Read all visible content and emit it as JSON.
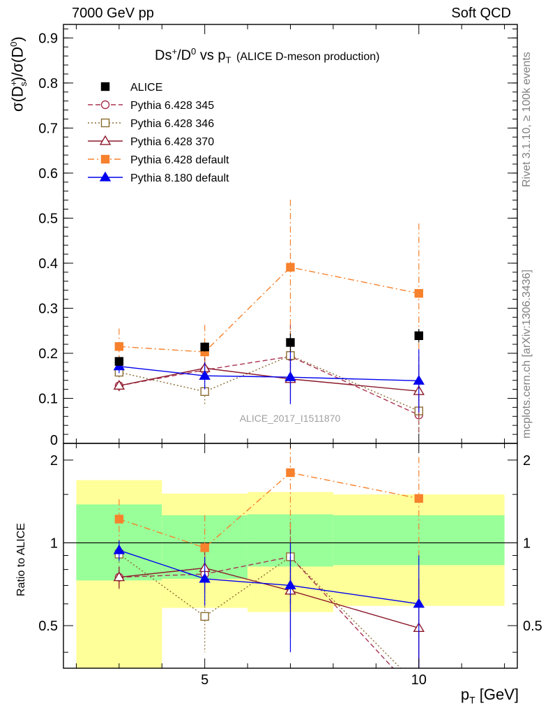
{
  "header": {
    "left": "7000 GeV pp",
    "right": "Soft QCD"
  },
  "side_labels": {
    "rivet": "Rivet 3.1.10, ≥ 100k events",
    "mcplots": "mcplots.cern.ch [arXiv:1306.3436]"
  },
  "chart_data": [
    {
      "type": "line",
      "title_main": "Ds",
      "title_sup1": "+",
      "title_mid": "/D",
      "title_sup2": "0",
      "title_vs": " vs p",
      "title_sub": "T",
      "title_tail": "(ALICE D-meson production)",
      "ylabel": "σ(D_s^+)/σ(D^0)",
      "ylabel_parts": {
        "a": "σ(D",
        "sup": "+",
        "sub": "s",
        "b": ")/σ(D",
        "sup2": "0",
        "c": ")"
      },
      "watermark": "ALICE_2017_I1511870",
      "xlim": [
        1.7,
        12.3
      ],
      "ylim": [
        0,
        0.93
      ],
      "y_ticks": [
        0,
        0.1,
        0.2,
        0.3,
        0.4,
        0.5,
        0.6,
        0.7,
        0.8,
        0.9
      ],
      "y_tick_labels": [
        "0",
        "0.1",
        "0.2",
        "0.3",
        "0.4",
        "0.5",
        "0.6",
        "0.7",
        "0.8",
        "0.9"
      ],
      "legend_position": "top-left",
      "series": [
        {
          "name": "ALICE",
          "color": "#000000",
          "marker": "filled-square",
          "line": "none",
          "x": [
            3,
            5,
            7,
            10
          ],
          "y": [
            0.182,
            0.214,
            0.224,
            0.239
          ],
          "yerr": [
            0.01,
            0.01,
            0.02,
            0.015
          ]
        },
        {
          "name": "Pythia 6.428 345",
          "color": "#a83250",
          "marker": "open-circle",
          "line": "dashed",
          "x": [
            3,
            5,
            7,
            10
          ],
          "y": [
            0.128,
            0.163,
            0.193,
            0.063
          ],
          "yerr": [
            0.012,
            0.025,
            0.07,
            0.04
          ]
        },
        {
          "name": "Pythia 6.428 346",
          "color": "#8b6b30",
          "marker": "open-square",
          "line": "dotted",
          "x": [
            3,
            5,
            7,
            10
          ],
          "y": [
            0.158,
            0.115,
            0.195,
            0.072
          ],
          "yerr": [
            0.015,
            0.03,
            0.07,
            0.05
          ]
        },
        {
          "name": "Pythia 6.428 370",
          "color": "#8b1a2b",
          "marker": "open-triangle",
          "line": "solid",
          "x": [
            3,
            5,
            7,
            10
          ],
          "y": [
            0.128,
            0.167,
            0.143,
            0.116
          ],
          "yerr": [
            0.012,
            0.025,
            0.05,
            0.06
          ]
        },
        {
          "name": "Pythia 6.428 default",
          "color": "#f7812c",
          "marker": "filled-square",
          "line": "dashdot",
          "x": [
            3,
            5,
            7,
            10
          ],
          "y": [
            0.215,
            0.203,
            0.391,
            0.333
          ],
          "yerr": [
            0.04,
            0.06,
            0.15,
            0.155
          ]
        },
        {
          "name": "Pythia 8.180 default",
          "color": "#0000ee",
          "marker": "filled-triangle",
          "line": "solid",
          "x": [
            3,
            5,
            7,
            10
          ],
          "y": [
            0.171,
            0.15,
            0.147,
            0.139
          ],
          "yerr": [
            0.015,
            0.03,
            0.06,
            0.07
          ]
        }
      ]
    },
    {
      "type": "line",
      "ylabel": "Ratio to ALICE",
      "xlabel_main": "p",
      "xlabel_sub": "T",
      "xlabel_unit": "[GeV]",
      "xlim": [
        1.7,
        12.3
      ],
      "ylim": [
        0.35,
        2.3
      ],
      "y_scale": "log",
      "x_ticks": [
        5,
        10
      ],
      "x_tick_labels": [
        "5",
        "10"
      ],
      "y_ticks": [
        0.5,
        1,
        2
      ],
      "y_tick_labels": [
        "0.5",
        "1",
        "2"
      ],
      "bands": {
        "bins": [
          [
            2,
            4
          ],
          [
            4,
            6
          ],
          [
            6,
            8
          ],
          [
            8,
            12
          ]
        ],
        "yellow": [
          [
            0.33,
            1.69
          ],
          [
            0.58,
            1.51
          ],
          [
            0.56,
            1.53
          ],
          [
            0.59,
            1.5
          ]
        ],
        "green": [
          [
            0.73,
            1.38
          ],
          [
            0.74,
            1.26
          ],
          [
            0.82,
            1.27
          ],
          [
            0.83,
            1.26
          ]
        ],
        "yellow_color": "#ffff99",
        "green_color": "#99ff99"
      },
      "series": [
        {
          "name": "Pythia 6.428 345",
          "color": "#a83250",
          "marker": "open-circle",
          "line": "dashed",
          "x": [
            3,
            5,
            7,
            10
          ],
          "y": [
            0.75,
            0.77,
            0.89,
            0.27
          ],
          "yerr": [
            0.07,
            0.12,
            0.3,
            0.2
          ]
        },
        {
          "name": "Pythia 6.428 346",
          "color": "#8b6b30",
          "marker": "open-square",
          "line": "dotted",
          "x": [
            3,
            5,
            7,
            10
          ],
          "y": [
            0.91,
            0.54,
            0.89,
            0.3
          ],
          "yerr": [
            0.08,
            0.14,
            0.3,
            0.2
          ]
        },
        {
          "name": "Pythia 6.428 370",
          "color": "#8b1a2b",
          "marker": "open-triangle",
          "line": "solid",
          "x": [
            3,
            5,
            7,
            10
          ],
          "y": [
            0.75,
            0.81,
            0.67,
            0.49
          ],
          "yerr": [
            0.07,
            0.12,
            0.22,
            0.25
          ]
        },
        {
          "name": "Pythia 6.428 default",
          "color": "#f7812c",
          "marker": "filled-square",
          "line": "dashdot",
          "x": [
            3,
            5,
            7,
            10
          ],
          "y": [
            1.22,
            0.96,
            1.8,
            1.45
          ],
          "yerr": [
            0.22,
            0.3,
            0.7,
            0.6
          ]
        },
        {
          "name": "Pythia 8.180 default",
          "color": "#0000ee",
          "marker": "filled-triangle",
          "line": "solid",
          "x": [
            3,
            5,
            7,
            10
          ],
          "y": [
            0.94,
            0.74,
            0.7,
            0.6
          ],
          "yerr": [
            0.08,
            0.15,
            0.3,
            0.3
          ]
        }
      ]
    }
  ]
}
